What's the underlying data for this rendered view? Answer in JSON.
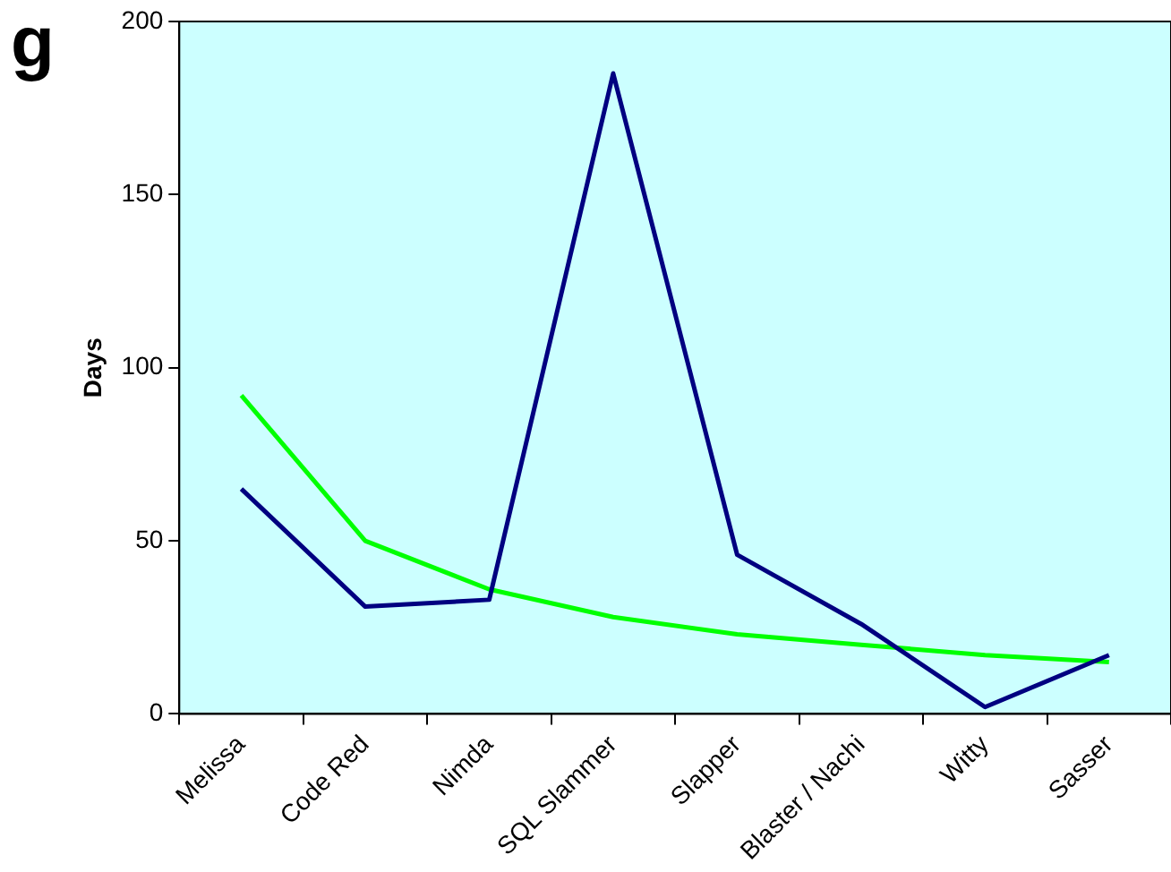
{
  "chart_data": {
    "type": "line",
    "ylabel": "Days",
    "annotations": [
      "g"
    ],
    "categories": [
      "Melissa",
      "Code Red",
      "Nimda",
      "SQL Slammer",
      "Slapper",
      "Blaster / Nachi",
      "Witty",
      "Sasser"
    ],
    "series": [
      {
        "color": "#000080",
        "values": [
          65,
          31,
          33,
          185,
          46,
          26,
          2,
          17
        ]
      },
      {
        "type": "line",
        "color": "#00ff00",
        "values": [
          92,
          50,
          36,
          28,
          23,
          20,
          17,
          15
        ]
      }
    ],
    "ylim": [
      0,
      200
    ],
    "yticks": [
      0,
      50,
      100,
      150,
      200
    ],
    "grid": false,
    "legend": false,
    "marker": "none"
  }
}
